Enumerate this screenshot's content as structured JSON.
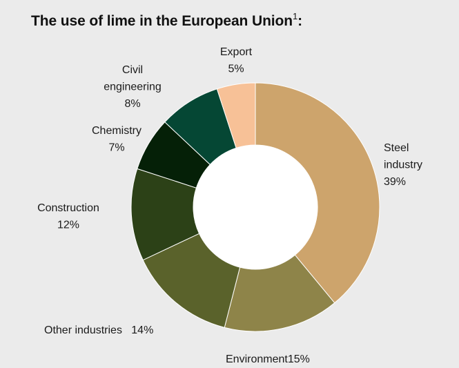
{
  "title": {
    "text": "The use of lime in the European Union",
    "footnote_mark": "1",
    "suffix": ":"
  },
  "chart_data": {
    "type": "pie",
    "variant": "donut",
    "title": "The use of lime in the European Union",
    "unit": "%",
    "slices": [
      {
        "label": "Steel industry",
        "value": 39,
        "color": "#cda46c",
        "label_lines": [
          "Steel",
          "industry",
          "39%"
        ]
      },
      {
        "label": "Environment",
        "value": 15,
        "color": "#8e8449",
        "label_lines": [
          "Environment15%"
        ]
      },
      {
        "label": "Other industries",
        "value": 14,
        "color": "#5a622b",
        "label_lines": [
          "Other industries   14%"
        ]
      },
      {
        "label": "Construction",
        "value": 12,
        "color": "#2c4117",
        "label_lines": [
          "Construction",
          "12%"
        ]
      },
      {
        "label": "Chemistry",
        "value": 7,
        "color": "#052007",
        "label_lines": [
          "Chemistry",
          "7%"
        ]
      },
      {
        "label": "Civil engineering",
        "value": 8,
        "color": "#054734",
        "label_lines": [
          "Civil",
          "engineering",
          "8%"
        ]
      },
      {
        "label": "Export",
        "value": 5,
        "color": "#f7c197",
        "label_lines": [
          "Export",
          "5%"
        ]
      }
    ],
    "start": "top (12 o'clock)",
    "direction": "clockwise",
    "legend": "none (direct labels)"
  }
}
